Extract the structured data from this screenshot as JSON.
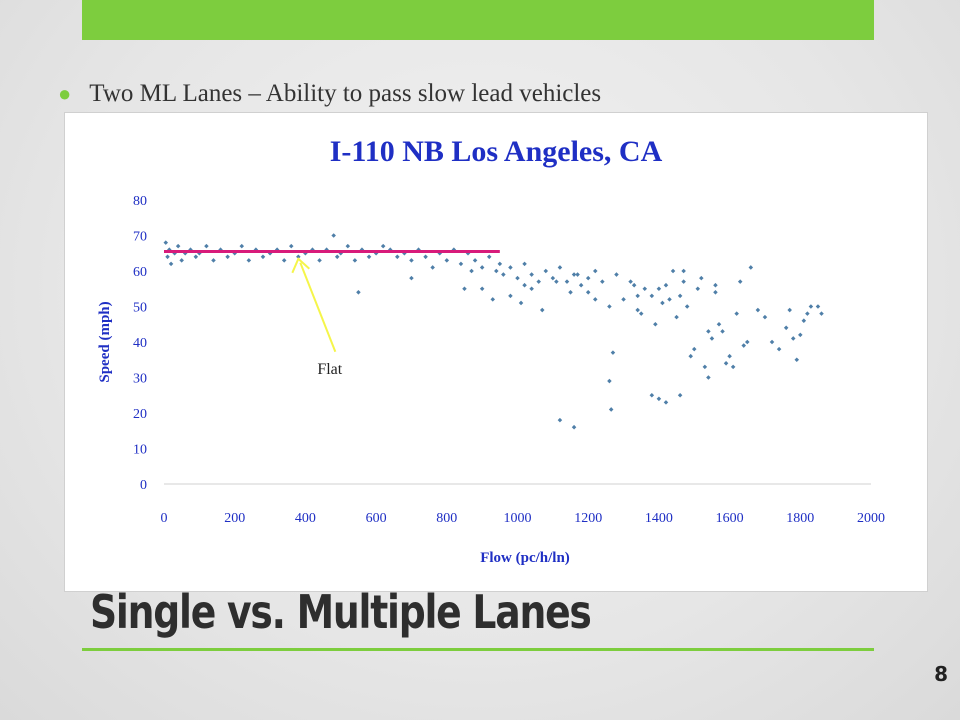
{
  "slide": {
    "bullet_text": "Two  ML Lanes – Ability to pass slow lead vehicles",
    "title": "Single vs. Multiple Lanes",
    "page_number": "8",
    "accent_color": "#7dcd3e"
  },
  "chart_data": {
    "type": "scatter",
    "title": "I-110 NB Los Angeles, CA",
    "xlabel": "Flow (pc/h/ln)",
    "ylabel": "Speed (mph)",
    "xlim": [
      0,
      2000
    ],
    "ylim": [
      0,
      80
    ],
    "x_ticks": [
      0,
      200,
      400,
      600,
      800,
      1000,
      1200,
      1400,
      1600,
      1800,
      2000
    ],
    "y_ticks": [
      0,
      10,
      20,
      30,
      40,
      50,
      60,
      70,
      80
    ],
    "grid": false,
    "legend": "none",
    "marker_color": "#4f7fa8",
    "reference_line": {
      "x": [
        0,
        950
      ],
      "y": 65.5,
      "color": "#d81b7a"
    },
    "annotation": {
      "text": "Flat",
      "tip_x": 380,
      "tip_y": 64,
      "arrow_color": "#f5f54a"
    },
    "series": [
      {
        "points": [
          [
            5,
            68
          ],
          [
            10,
            64
          ],
          [
            15,
            66
          ],
          [
            20,
            62
          ],
          [
            30,
            65
          ],
          [
            40,
            67
          ],
          [
            50,
            63
          ],
          [
            60,
            65
          ],
          [
            75,
            66
          ],
          [
            90,
            64
          ],
          [
            100,
            65
          ],
          [
            120,
            67
          ],
          [
            140,
            63
          ],
          [
            160,
            66
          ],
          [
            180,
            64
          ],
          [
            200,
            65
          ],
          [
            220,
            67
          ],
          [
            240,
            63
          ],
          [
            260,
            66
          ],
          [
            280,
            64
          ],
          [
            300,
            65
          ],
          [
            320,
            66
          ],
          [
            340,
            63
          ],
          [
            360,
            67
          ],
          [
            380,
            64
          ],
          [
            400,
            65
          ],
          [
            420,
            66
          ],
          [
            440,
            63
          ],
          [
            460,
            66
          ],
          [
            480,
            70
          ],
          [
            490,
            64
          ],
          [
            500,
            65
          ],
          [
            520,
            67
          ],
          [
            540,
            63
          ],
          [
            560,
            66
          ],
          [
            580,
            64
          ],
          [
            600,
            65
          ],
          [
            620,
            67
          ],
          [
            640,
            66
          ],
          [
            660,
            64
          ],
          [
            680,
            65
          ],
          [
            700,
            63
          ],
          [
            720,
            66
          ],
          [
            740,
            64
          ],
          [
            760,
            61
          ],
          [
            780,
            65
          ],
          [
            800,
            63
          ],
          [
            820,
            66
          ],
          [
            840,
            62
          ],
          [
            860,
            65
          ],
          [
            870,
            60
          ],
          [
            880,
            63
          ],
          [
            900,
            61
          ],
          [
            920,
            64
          ],
          [
            940,
            60
          ],
          [
            950,
            62
          ],
          [
            960,
            59
          ],
          [
            980,
            61
          ],
          [
            1000,
            58
          ],
          [
            1020,
            62
          ],
          [
            1040,
            59
          ],
          [
            1060,
            57
          ],
          [
            1080,
            60
          ],
          [
            1100,
            58
          ],
          [
            1120,
            61
          ],
          [
            1140,
            57
          ],
          [
            1160,
            59
          ],
          [
            1180,
            56
          ],
          [
            1200,
            58
          ],
          [
            1220,
            60
          ],
          [
            550,
            54
          ],
          [
            700,
            58
          ],
          [
            850,
            55
          ],
          [
            900,
            55
          ],
          [
            930,
            52
          ],
          [
            980,
            53
          ],
          [
            1010,
            51
          ],
          [
            1020,
            56
          ],
          [
            1040,
            55
          ],
          [
            1070,
            49
          ],
          [
            1110,
            57
          ],
          [
            1150,
            54
          ],
          [
            1170,
            59
          ],
          [
            1200,
            54
          ],
          [
            1220,
            52
          ],
          [
            1240,
            57
          ],
          [
            1260,
            50
          ],
          [
            1270,
            37
          ],
          [
            1260,
            29
          ],
          [
            1265,
            21
          ],
          [
            1280,
            59
          ],
          [
            1300,
            52
          ],
          [
            1320,
            57
          ],
          [
            1340,
            53
          ],
          [
            1350,
            48
          ],
          [
            1360,
            55
          ],
          [
            1380,
            53
          ],
          [
            1390,
            45
          ],
          [
            1400,
            55
          ],
          [
            1410,
            51
          ],
          [
            1420,
            56
          ],
          [
            1430,
            52
          ],
          [
            1440,
            60
          ],
          [
            1450,
            47
          ],
          [
            1460,
            53
          ],
          [
            1470,
            57
          ],
          [
            1480,
            50
          ],
          [
            1490,
            36
          ],
          [
            1500,
            38
          ],
          [
            1510,
            55
          ],
          [
            1520,
            58
          ],
          [
            1530,
            33
          ],
          [
            1540,
            43
          ],
          [
            1550,
            41
          ],
          [
            1560,
            56
          ],
          [
            1570,
            45
          ],
          [
            1580,
            43
          ],
          [
            1590,
            34
          ],
          [
            1600,
            36
          ],
          [
            1610,
            33
          ],
          [
            1620,
            48
          ],
          [
            1630,
            57
          ],
          [
            1640,
            39
          ],
          [
            1650,
            40
          ],
          [
            1660,
            61
          ],
          [
            1680,
            49
          ],
          [
            1700,
            47
          ],
          [
            1720,
            40
          ],
          [
            1740,
            38
          ],
          [
            1760,
            44
          ],
          [
            1770,
            49
          ],
          [
            1780,
            41
          ],
          [
            1790,
            35
          ],
          [
            1800,
            42
          ],
          [
            1810,
            46
          ],
          [
            1820,
            48
          ],
          [
            1830,
            50
          ],
          [
            1850,
            50
          ],
          [
            1860,
            48
          ],
          [
            1380,
            25
          ],
          [
            1400,
            24
          ],
          [
            1420,
            23
          ],
          [
            1460,
            25
          ],
          [
            1120,
            18
          ],
          [
            1160,
            16
          ],
          [
            1330,
            56
          ],
          [
            1340,
            49
          ],
          [
            1470,
            60
          ],
          [
            1540,
            30
          ],
          [
            1560,
            54
          ]
        ]
      }
    ]
  }
}
